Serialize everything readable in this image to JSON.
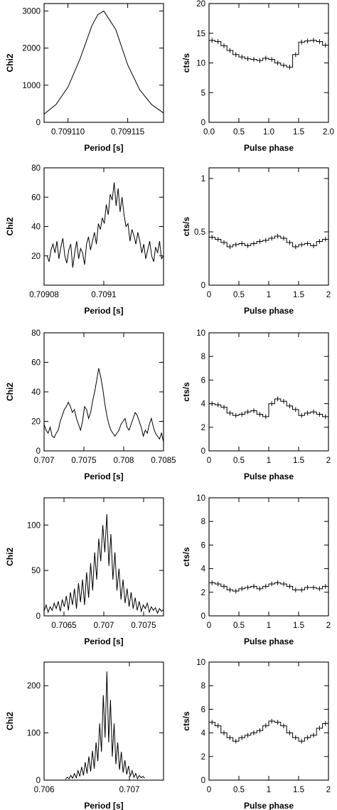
{
  "chart_data": [
    {
      "type": "line",
      "panel": "chi2-1",
      "xlabel": "Period [s]",
      "ylabel": "Chi2",
      "xlim": [
        0.709108,
        0.709118
      ],
      "ylim": [
        0,
        3200
      ],
      "xticks": [
        0.70911,
        0.709115
      ],
      "xtick_labels": [
        "0.709110",
        "0.709115"
      ],
      "yticks": [
        0,
        1000,
        2000,
        3000
      ],
      "ytick_labels": [
        "0",
        "1000",
        "2000",
        "3000"
      ],
      "x": [
        0.709108,
        0.709109,
        0.70911,
        0.709111,
        0.709112,
        0.7091125,
        0.709113,
        0.709114,
        0.709115,
        0.709116,
        0.709117,
        0.709118
      ],
      "values": [
        220,
        480,
        950,
        1700,
        2600,
        2900,
        3000,
        2500,
        1550,
        880,
        480,
        250
      ]
    },
    {
      "type": "step",
      "panel": "profile-1",
      "xlabel": "Pulse phase",
      "ylabel": "cts/s",
      "xlim": [
        0,
        2
      ],
      "ylim": [
        0,
        20
      ],
      "xticks": [
        0,
        0.5,
        1,
        1.5,
        2
      ],
      "xtick_labels": [
        "0.0",
        "0.5",
        "1.0",
        "1.5",
        "2.0"
      ],
      "yticks": [
        0,
        5,
        10,
        15,
        20
      ],
      "ytick_labels": [
        "0",
        "5",
        "10",
        "15",
        "20"
      ],
      "values": [
        13.8,
        13.6,
        12.9,
        12.1,
        11.4,
        11.0,
        10.7,
        10.6,
        10.4,
        10.8,
        10.6,
        10.0,
        9.6,
        9.3,
        11.4,
        13.5,
        13.7,
        13.8,
        13.6,
        13.0
      ]
    },
    {
      "type": "line",
      "panel": "chi2-2",
      "xlabel": "Period [s]",
      "ylabel": "Chi2",
      "xlim": [
        0.70908,
        0.70912
      ],
      "ylim": [
        0,
        80
      ],
      "xticks": [
        0.70908,
        0.7091
      ],
      "xtick_labels": [
        "0.70908",
        "0.7091"
      ],
      "yticks": [
        20,
        40,
        60,
        80
      ],
      "ytick_labels": [
        "20",
        "40",
        "60",
        "80"
      ],
      "x_start": 0.709081,
      "x_end": 0.70912,
      "values": [
        20,
        16,
        24,
        28,
        22,
        30,
        18,
        26,
        32,
        20,
        15,
        24,
        28,
        12,
        22,
        30,
        18,
        25,
        22,
        14,
        28,
        33,
        24,
        30,
        36,
        28,
        42,
        38,
        46,
        42,
        55,
        48,
        62,
        58,
        70,
        54,
        66,
        50,
        60,
        48,
        40,
        42,
        30,
        38,
        34,
        28,
        36,
        30,
        22,
        28,
        18,
        24,
        30,
        20,
        16,
        26,
        22,
        30,
        18,
        20
      ]
    },
    {
      "type": "step",
      "panel": "profile-2",
      "xlabel": "Pulse phase",
      "ylabel": "cts/s",
      "xlim": [
        0,
        2
      ],
      "ylim": [
        0,
        1.1
      ],
      "xticks": [
        0,
        0.5,
        1,
        1.5,
        2
      ],
      "xtick_labels": [
        "0",
        "0.5",
        "1",
        "1.5",
        "2"
      ],
      "yticks": [
        0,
        0.5,
        1
      ],
      "ytick_labels": [
        "0",
        "0.5",
        "1"
      ],
      "values": [
        0.45,
        0.43,
        0.4,
        0.36,
        0.38,
        0.39,
        0.37,
        0.39,
        0.41,
        0.42,
        0.44,
        0.46,
        0.44,
        0.4,
        0.36,
        0.38,
        0.39,
        0.37,
        0.41,
        0.43
      ]
    },
    {
      "type": "line",
      "panel": "chi2-3",
      "xlabel": "Period [s]",
      "ylabel": "Chi2",
      "xlim": [
        0.707,
        0.7085
      ],
      "ylim": [
        0,
        80
      ],
      "xticks": [
        0.707,
        0.7075,
        0.708,
        0.7085
      ],
      "xtick_labels": [
        "0.707",
        "0.7075",
        "0.708",
        "0.7085"
      ],
      "yticks": [
        0,
        20,
        40,
        60,
        80
      ],
      "ytick_labels": [
        "0",
        "20",
        "40",
        "60",
        "80"
      ],
      "x_start": 0.707,
      "x_end": 0.7085,
      "values": [
        18,
        14,
        12,
        16,
        10,
        9,
        12,
        14,
        20,
        24,
        28,
        30,
        33,
        30,
        26,
        28,
        22,
        18,
        14,
        20,
        30,
        28,
        22,
        26,
        34,
        40,
        48,
        56,
        50,
        42,
        32,
        24,
        18,
        14,
        12,
        10,
        12,
        14,
        18,
        20,
        22,
        16,
        14,
        18,
        22,
        26,
        24,
        20,
        16,
        10,
        14,
        12,
        18,
        22,
        16,
        12,
        10,
        8,
        12,
        6
      ]
    },
    {
      "type": "step",
      "panel": "profile-3",
      "xlabel": "Pulse phase",
      "ylabel": "cts/s",
      "xlim": [
        0,
        2
      ],
      "ylim": [
        0,
        10
      ],
      "xticks": [
        0,
        0.5,
        1,
        1.5,
        2
      ],
      "xtick_labels": [
        "0",
        "0.5",
        "1",
        "1.5",
        "2"
      ],
      "yticks": [
        0,
        2,
        4,
        6,
        8,
        10
      ],
      "ytick_labels": [
        "0",
        "2",
        "4",
        "6",
        "8",
        "10"
      ],
      "values": [
        4.0,
        3.9,
        3.7,
        3.2,
        3.0,
        3.1,
        3.3,
        3.4,
        3.1,
        2.9,
        4.0,
        4.4,
        4.2,
        3.8,
        3.5,
        3.0,
        3.2,
        3.3,
        3.1,
        2.9
      ]
    },
    {
      "type": "line",
      "panel": "chi2-4",
      "xlabel": "Period [s]",
      "ylabel": "Chi2",
      "xlim": [
        0.70625,
        0.70775
      ],
      "ylim": [
        0,
        130
      ],
      "xticks": [
        0.7065,
        0.707,
        0.7075
      ],
      "xtick_labels": [
        "0.7065",
        "0.707",
        "0.7075"
      ],
      "yticks": [
        0,
        50,
        100
      ],
      "ytick_labels": [
        "0",
        "50",
        "100"
      ],
      "x_start": 0.70625,
      "x_end": 0.70775,
      "values": [
        5,
        12,
        4,
        10,
        6,
        14,
        8,
        16,
        5,
        18,
        10,
        22,
        6,
        26,
        12,
        30,
        8,
        36,
        15,
        40,
        12,
        48,
        20,
        58,
        28,
        70,
        40,
        85,
        60,
        100,
        70,
        112,
        55,
        90,
        40,
        70,
        28,
        52,
        18,
        40,
        14,
        30,
        10,
        26,
        8,
        20,
        6,
        16,
        5,
        12,
        8,
        14,
        4,
        10,
        6,
        9,
        3,
        8,
        5,
        7
      ]
    },
    {
      "type": "step",
      "panel": "profile-4",
      "xlabel": "Pulse phase",
      "ylabel": "cts/s",
      "xlim": [
        0,
        2
      ],
      "ylim": [
        0,
        10
      ],
      "xticks": [
        0,
        0.5,
        1,
        1.5,
        2
      ],
      "xtick_labels": [
        "0",
        "0.5",
        "1",
        "1.5",
        "2"
      ],
      "yticks": [
        0,
        2,
        4,
        6,
        8,
        10
      ],
      "ytick_labels": [
        "0",
        "2",
        "4",
        "6",
        "8",
        "10"
      ],
      "values": [
        2.8,
        2.7,
        2.5,
        2.2,
        2.1,
        2.3,
        2.4,
        2.5,
        2.3,
        2.5,
        2.7,
        2.8,
        2.7,
        2.5,
        2.2,
        2.2,
        2.4,
        2.4,
        2.3,
        2.5
      ]
    },
    {
      "type": "line",
      "panel": "chi2-5",
      "xlabel": "Period [s]",
      "ylabel": "Chi2",
      "xlim": [
        0.706,
        0.7074
      ],
      "ylim": [
        0,
        250
      ],
      "xticks": [
        0.706,
        0.707
      ],
      "xtick_labels": [
        "0.706",
        "0.707"
      ],
      "yticks": [
        0,
        100,
        200
      ],
      "ytick_labels": [
        "0",
        "100",
        "200"
      ],
      "x_start": 0.70625,
      "x_end": 0.70718,
      "values": [
        2,
        6,
        3,
        10,
        4,
        14,
        5,
        20,
        8,
        28,
        10,
        38,
        14,
        50,
        18,
        62,
        24,
        80,
        40,
        120,
        60,
        180,
        90,
        230,
        80,
        170,
        50,
        120,
        34,
        80,
        22,
        60,
        16,
        42,
        12,
        30,
        8,
        20,
        6,
        14,
        3,
        10,
        5,
        8,
        4
      ]
    },
    {
      "type": "step",
      "panel": "profile-5",
      "xlabel": "Pulse phase",
      "ylabel": "cts/s",
      "xlim": [
        0,
        2
      ],
      "ylim": [
        0,
        10
      ],
      "xticks": [
        0,
        0.5,
        1,
        1.5,
        2
      ],
      "xtick_labels": [
        "0",
        "0.5",
        "1",
        "1.5",
        "2"
      ],
      "yticks": [
        0,
        2,
        4,
        6,
        8,
        10
      ],
      "ytick_labels": [
        "0",
        "2",
        "4",
        "6",
        "8",
        "10"
      ],
      "values": [
        4.9,
        4.6,
        4.0,
        3.6,
        3.3,
        3.6,
        3.8,
        4.0,
        4.2,
        4.6,
        5.0,
        4.9,
        4.6,
        4.0,
        3.6,
        3.3,
        3.6,
        3.8,
        4.4,
        4.8
      ]
    }
  ]
}
